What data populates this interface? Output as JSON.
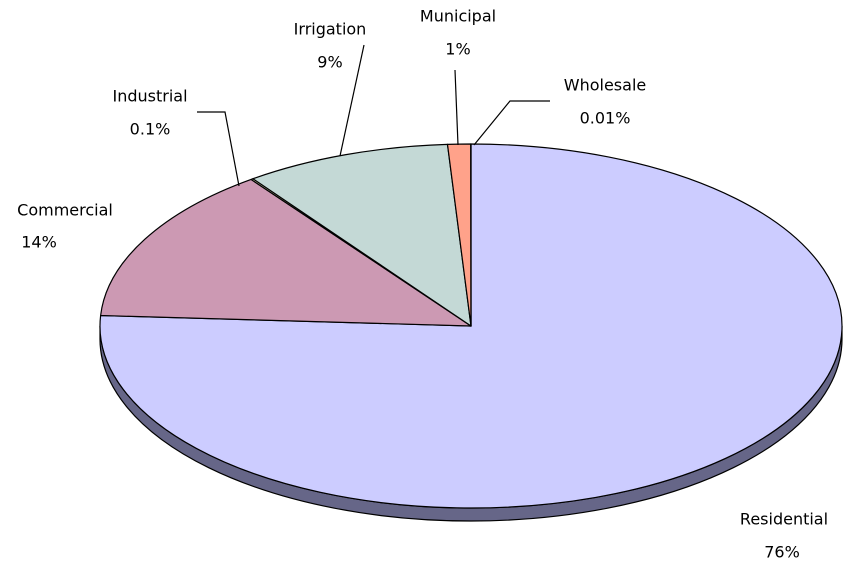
{
  "chart_data": {
    "type": "pie",
    "categories": [
      "Residential",
      "Commercial",
      "Industrial",
      "Irrigation",
      "Municipal",
      "Wholesale"
    ],
    "values": [
      76,
      14,
      0.1,
      9,
      1,
      0.01
    ],
    "value_labels": [
      "76%",
      "14%",
      "0.1%",
      "9%",
      "1%",
      "0.01%"
    ],
    "colors": [
      "#ccccff",
      "#cc99b3",
      "#ffffcc",
      "#c4d9d6",
      "#ffa28a",
      "#ccffff"
    ],
    "side_color": "#666688"
  }
}
